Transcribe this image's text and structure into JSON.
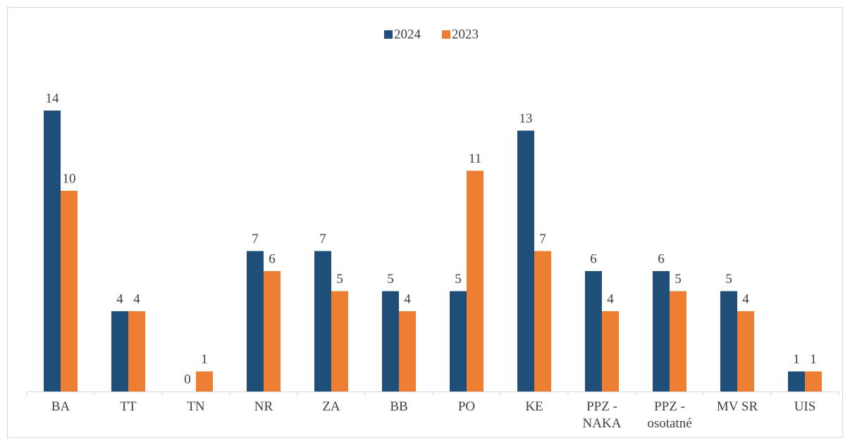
{
  "chart_data": {
    "type": "bar",
    "categories": [
      "BA",
      "TT",
      "TN",
      "NR",
      "ZA",
      "BB",
      "PO",
      "KE",
      "PPZ - NAKA",
      "PPZ - osotatné",
      "MV SR",
      "UIS"
    ],
    "series": [
      {
        "name": "2024",
        "color": "#1f4e79",
        "values": [
          14,
          4,
          0,
          7,
          7,
          5,
          5,
          13,
          6,
          6,
          5,
          1
        ]
      },
      {
        "name": "2023",
        "color": "#ed7d31",
        "values": [
          10,
          4,
          1,
          6,
          5,
          4,
          11,
          7,
          4,
          5,
          4,
          1
        ]
      }
    ],
    "ylim": [
      0,
      16
    ],
    "legend": "top"
  }
}
